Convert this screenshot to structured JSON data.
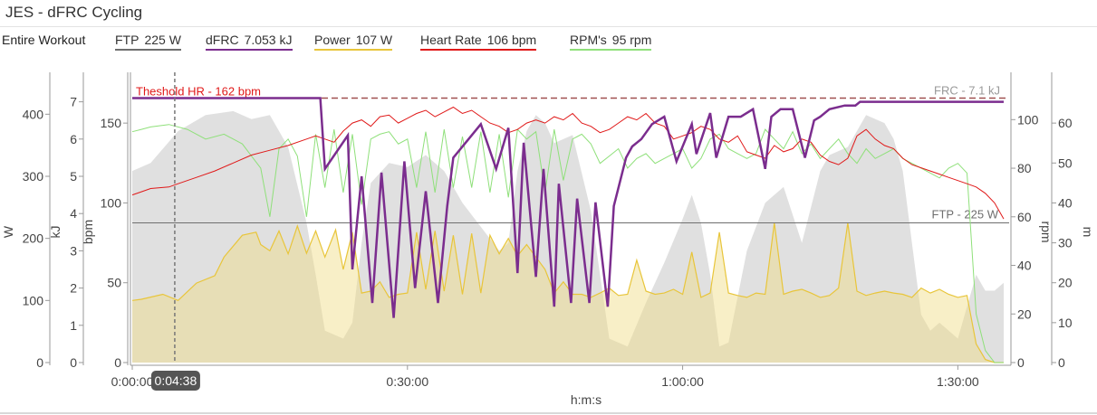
{
  "app": {
    "title": "JES - dFRC Cycling"
  },
  "legend": {
    "range_label": "Entire Workout",
    "items": [
      {
        "name": "FTP",
        "value": "225 W",
        "color": "#6e6e6e"
      },
      {
        "name": "dFRC",
        "value": "7.053 kJ",
        "color": "#7b2d8e"
      },
      {
        "name": "Power",
        "value": "107 W",
        "color": "#e8c53a"
      },
      {
        "name": "Heart Rate",
        "value": "106 bpm",
        "color": "#e01919"
      },
      {
        "name": "RPM's",
        "value": "95 rpm",
        "color": "#8fe07a"
      }
    ]
  },
  "cursor_label": "0:04:38",
  "chart_data": {
    "type": "line",
    "xlabel": "h:m:s",
    "xlim_seconds": [
      0,
      5700
    ],
    "x_ticks": [
      "0:00:00",
      "0:30:00",
      "1:00:00",
      "1:30:00"
    ],
    "cursor_seconds": 278,
    "axes": {
      "power": {
        "label": "W",
        "side": "left",
        "ylim": [
          0,
          450
        ],
        "ticks": [
          "0",
          "100",
          "200",
          "300",
          "400"
        ]
      },
      "dfrc": {
        "label": "kJ",
        "side": "left",
        "ylim": [
          0,
          7.5
        ],
        "ticks": [
          "0",
          "1",
          "2",
          "3",
          "4",
          "5",
          "6",
          "7"
        ]
      },
      "hr": {
        "label": "bpm",
        "side": "left",
        "ylim": [
          0,
          175
        ],
        "ticks": [
          "0",
          "50",
          "100",
          "150"
        ]
      },
      "rpm": {
        "label": "rpm",
        "side": "right",
        "ylim": [
          0,
          115
        ],
        "ticks": [
          "0",
          "20",
          "40",
          "60",
          "80",
          "100"
        ]
      },
      "m": {
        "label": "m",
        "side": "right",
        "ylim": [
          0,
          70
        ],
        "ticks": [
          "0",
          "10",
          "20",
          "30",
          "40",
          "50",
          "60"
        ]
      }
    },
    "annotations": {
      "threshold_hr": {
        "text": "Theshold HR - 162 bpm",
        "value_bpm": 162,
        "color": "#e01919"
      },
      "frc": {
        "text": "FRC - 7.1 kJ",
        "value_kj": 7.1,
        "color": "#a05050"
      },
      "ftp": {
        "text": "FTP - 225 W",
        "value_w": 225,
        "color": "#6e6e6e"
      }
    },
    "series": [
      {
        "name": "Elevation",
        "axis": "m",
        "color": "#e0e0e0",
        "x": [
          0,
          120,
          300,
          480,
          660,
          780,
          900,
          1020,
          1140,
          1200,
          1260,
          1380,
          1440,
          1500,
          1560,
          1680,
          1800,
          1920,
          2040,
          2160,
          2280,
          2400,
          2460,
          2520,
          2580,
          2640,
          2700,
          2760,
          2880,
          3000,
          3060,
          3120,
          3240,
          3360,
          3480,
          3600,
          3660,
          3720,
          3780,
          3840,
          3900,
          4020,
          4140,
          4260,
          4380,
          4500,
          4560,
          4680,
          4800,
          4920,
          4980,
          5040,
          5100,
          5160,
          5220,
          5280,
          5400,
          5520,
          5580,
          5640,
          5700
        ],
        "y": [
          48,
          50,
          58,
          62,
          63,
          61,
          62,
          54,
          35,
          22,
          8,
          6,
          10,
          30,
          45,
          50,
          49,
          52,
          48,
          40,
          34,
          28,
          30,
          48,
          58,
          62,
          60,
          55,
          57,
          38,
          22,
          6,
          4,
          15,
          25,
          36,
          42,
          35,
          22,
          4,
          5,
          28,
          40,
          44,
          30,
          48,
          52,
          54,
          62,
          60,
          56,
          48,
          30,
          12,
          8,
          10,
          6,
          22,
          18,
          18,
          20
        ]
      },
      {
        "name": "Power",
        "axis": "power",
        "color": "#e8c53a",
        "x": [
          0,
          60,
          200,
          300,
          420,
          540,
          600,
          720,
          810,
          840,
          900,
          960,
          1020,
          1080,
          1140,
          1200,
          1260,
          1330,
          1380,
          1440,
          1500,
          1560,
          1620,
          1680,
          1740,
          1800,
          1860,
          1920,
          1980,
          2040,
          2100,
          2160,
          2220,
          2280,
          2340,
          2400,
          2460,
          2520,
          2580,
          2640,
          2700,
          2760,
          2820,
          2880,
          2940,
          3000,
          3060,
          3120,
          3180,
          3240,
          3300,
          3360,
          3420,
          3480,
          3540,
          3600,
          3660,
          3720,
          3780,
          3840,
          3900,
          3960,
          4020,
          4080,
          4140,
          4200,
          4260,
          4320,
          4380,
          4440,
          4500,
          4560,
          4620,
          4680,
          4740,
          4800,
          4860,
          4920,
          4980,
          5040,
          5100,
          5160,
          5220,
          5280,
          5340,
          5400,
          5460,
          5520,
          5580,
          5640,
          5700
        ],
        "y": [
          100,
          102,
          110,
          100,
          128,
          140,
          170,
          205,
          210,
          190,
          180,
          212,
          175,
          220,
          176,
          212,
          170,
          214,
          150,
          210,
          112,
          115,
          130,
          105,
          110,
          112,
          210,
          118,
          212,
          115,
          205,
          110,
          208,
          112,
          205,
          175,
          200,
          172,
          190,
          170,
          150,
          112,
          130,
          110,
          110,
          105,
          112,
          120,
          108,
          110,
          165,
          115,
          110,
          112,
          118,
          110,
          178,
          105,
          112,
          210,
          112,
          108,
          105,
          112,
          110,
          225,
          110,
          115,
          118,
          112,
          105,
          108,
          120,
          225,
          115,
          108,
          112,
          115,
          112,
          110,
          105,
          120,
          112,
          118,
          110,
          105,
          108,
          30,
          5,
          0,
          0
        ]
      },
      {
        "name": "Heart Rate",
        "axis": "hr",
        "color": "#e01919",
        "x": [
          0,
          60,
          120,
          240,
          300,
          420,
          540,
          660,
          780,
          900,
          1020,
          1140,
          1200,
          1260,
          1320,
          1380,
          1440,
          1500,
          1560,
          1620,
          1680,
          1740,
          1800,
          1860,
          1920,
          1980,
          2040,
          2100,
          2160,
          2220,
          2280,
          2340,
          2400,
          2460,
          2520,
          2580,
          2640,
          2700,
          2760,
          2820,
          2880,
          2940,
          3000,
          3060,
          3120,
          3180,
          3240,
          3300,
          3360,
          3420,
          3480,
          3540,
          3600,
          3660,
          3720,
          3780,
          3840,
          3900,
          3960,
          4020,
          4080,
          4140,
          4200,
          4260,
          4320,
          4380,
          4440,
          4500,
          4560,
          4620,
          4680,
          4740,
          4800,
          4860,
          4920,
          4980,
          5040,
          5100,
          5160,
          5220,
          5280,
          5340,
          5400,
          5460,
          5520,
          5580,
          5640,
          5700
        ],
        "y": [
          105,
          107,
          109,
          110,
          112,
          116,
          120,
          125,
          130,
          133,
          136,
          140,
          142,
          140,
          138,
          145,
          150,
          152,
          148,
          154,
          155,
          150,
          153,
          156,
          158,
          154,
          157,
          160,
          156,
          158,
          154,
          150,
          148,
          144,
          146,
          150,
          152,
          150,
          154,
          152,
          156,
          150,
          148,
          144,
          146,
          150,
          154,
          152,
          156,
          150,
          148,
          140,
          142,
          144,
          148,
          146,
          140,
          138,
          142,
          132,
          130,
          128,
          136,
          132,
          134,
          140,
          138,
          130,
          126,
          124,
          128,
          142,
          146,
          140,
          136,
          134,
          128,
          124,
          122,
          120,
          118,
          116,
          114,
          112,
          110,
          106,
          100,
          90
        ]
      },
      {
        "name": "RPM's",
        "axis": "rpm",
        "color": "#8fe07a",
        "x": [
          0,
          60,
          120,
          240,
          360,
          480,
          600,
          720,
          780,
          840,
          900,
          960,
          1020,
          1080,
          1140,
          1200,
          1260,
          1320,
          1380,
          1440,
          1500,
          1560,
          1620,
          1680,
          1740,
          1800,
          1860,
          1920,
          1980,
          2040,
          2100,
          2160,
          2220,
          2280,
          2340,
          2400,
          2460,
          2520,
          2580,
          2640,
          2700,
          2760,
          2820,
          2880,
          2940,
          3000,
          3060,
          3120,
          3180,
          3240,
          3300,
          3360,
          3420,
          3480,
          3540,
          3600,
          3660,
          3720,
          3780,
          3840,
          3900,
          3960,
          4020,
          4080,
          4140,
          4200,
          4260,
          4320,
          4380,
          4440,
          4500,
          4560,
          4620,
          4680,
          4740,
          4800,
          4860,
          4920,
          4980,
          5040,
          5100,
          5160,
          5220,
          5280,
          5340,
          5400,
          5460,
          5520,
          5580,
          5640,
          5700
        ],
        "y": [
          95,
          96,
          97,
          98,
          96,
          92,
          94,
          90,
          85,
          80,
          60,
          88,
          92,
          85,
          60,
          94,
          72,
          96,
          70,
          94,
          65,
          92,
          94,
          95,
          90,
          92,
          72,
          95,
          70,
          96,
          72,
          93,
          72,
          95,
          70,
          94,
          68,
          96,
          92,
          95,
          70,
          96,
          75,
          92,
          94,
          90,
          82,
          85,
          88,
          80,
          84,
          86,
          82,
          84,
          86,
          88,
          80,
          84,
          92,
          94,
          88,
          86,
          84,
          86,
          96,
          92,
          88,
          95,
          86,
          90,
          84,
          88,
          92,
          86,
          82,
          88,
          84,
          86,
          88,
          84,
          82,
          80,
          78,
          76,
          80,
          82,
          78,
          20,
          5,
          0,
          0
        ]
      },
      {
        "name": "dFRC",
        "axis": "dfrc",
        "color": "#7b2d8e",
        "x": [
          0,
          1230,
          1260,
          1410,
          1440,
          1500,
          1570,
          1630,
          1710,
          1780,
          1850,
          1920,
          2000,
          2060,
          2100,
          2200,
          2280,
          2380,
          2460,
          2520,
          2560,
          2640,
          2690,
          2760,
          2790,
          2870,
          2910,
          2990,
          3030,
          3110,
          3150,
          3230,
          3270,
          3330,
          3400,
          3480,
          3560,
          3660,
          3690,
          3780,
          3820,
          3900,
          3980,
          4060,
          4140,
          4180,
          4240,
          4320,
          4400,
          4460,
          4500,
          4560,
          4660,
          4730,
          4760,
          4820,
          4860,
          4960,
          5060,
          5160,
          5260,
          5360,
          5460,
          5520,
          5580,
          5640,
          5700
        ],
        "y": [
          7.1,
          7.1,
          5.2,
          6.1,
          2.5,
          5.0,
          1.6,
          5.1,
          1.2,
          5.4,
          2.0,
          4.6,
          1.6,
          4.2,
          5.5,
          6.0,
          6.4,
          5.2,
          6.3,
          2.4,
          5.9,
          2.3,
          5.2,
          1.5,
          4.8,
          1.6,
          4.4,
          1.6,
          4.3,
          1.5,
          4.2,
          5.5,
          5.8,
          6.0,
          6.4,
          6.6,
          5.4,
          6.4,
          5.6,
          6.7,
          5.5,
          6.6,
          6.6,
          6.8,
          5.2,
          6.6,
          6.8,
          6.8,
          5.5,
          6.5,
          6.6,
          6.8,
          6.9,
          6.9,
          7.0,
          7.0,
          7.0,
          7.0,
          7.0,
          7.0,
          7.0,
          7.0,
          7.0,
          7.0,
          7.0,
          7.0,
          7.0
        ]
      }
    ]
  }
}
